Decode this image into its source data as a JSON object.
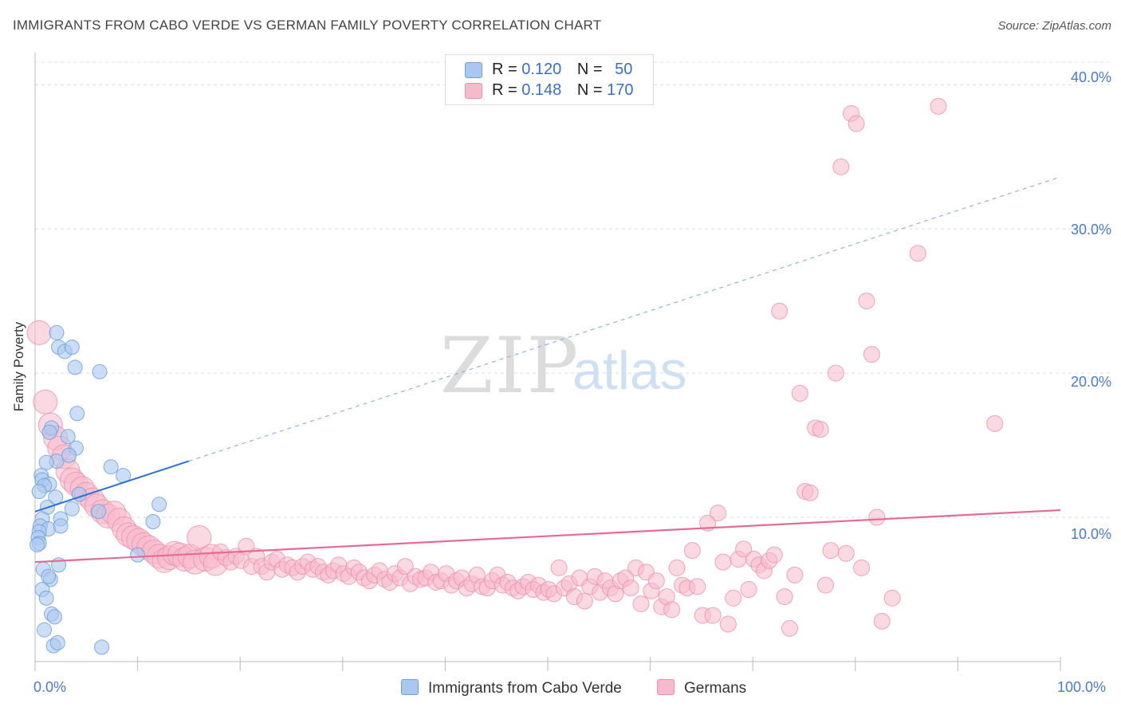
{
  "title": "IMMIGRANTS FROM CABO VERDE VS GERMAN FAMILY POVERTY CORRELATION CHART",
  "source": "Source: ZipAtlas.com",
  "watermark": {
    "zip": "ZIP",
    "atlas": "atlas"
  },
  "colors": {
    "blue_fill": "#aac8ef",
    "blue_stroke": "#6f9fdc",
    "blue_line": "#2f6fd0",
    "pink_fill": "#f7b9cc",
    "pink_stroke": "#eb8fab",
    "pink_line": "#e56b94",
    "axis_text": "#4a7bc8"
  },
  "legend": {
    "rows": [
      {
        "r_label": "R =",
        "r_value": "0.120",
        "n_label": "N =",
        "n_value": "50"
      },
      {
        "r_label": "R =",
        "r_value": "0.148",
        "n_label": "N =",
        "n_value": "170"
      }
    ]
  },
  "bottom_legend": {
    "series1": "Immigrants from Cabo Verde",
    "series2": "Germans"
  },
  "chart_data": {
    "type": "scatter",
    "title": "IMMIGRANTS FROM CABO VERDE VS GERMAN FAMILY POVERTY CORRELATION CHART",
    "xlabel": "",
    "ylabel": "Family Poverty",
    "xlim": [
      0,
      100
    ],
    "ylim": [
      0,
      42
    ],
    "x_ticks": [
      "0.0%",
      "100.0%"
    ],
    "y_ticks": [
      {
        "value": 10,
        "label": "10.0%"
      },
      {
        "value": 20,
        "label": "20.0%"
      },
      {
        "value": 30,
        "label": "30.0%"
      },
      {
        "value": 40,
        "label": "40.0%"
      }
    ],
    "grid": "horizontal dashed",
    "legend_position": "top-center",
    "series": [
      {
        "name": "Immigrants from Cabo Verde",
        "color": "#aac8ef",
        "r": 0.12,
        "n": 50,
        "trend": {
          "x": [
            0,
            15
          ],
          "y": [
            10.4,
            13.9
          ],
          "dashed_to": [
            100,
            33.6
          ]
        },
        "points": [
          [
            2.1,
            22.8
          ],
          [
            2.3,
            21.8
          ],
          [
            2.9,
            21.5
          ],
          [
            3.6,
            21.8
          ],
          [
            3.9,
            20.4
          ],
          [
            6.3,
            20.1
          ],
          [
            4.1,
            17.2
          ],
          [
            1.6,
            16.2
          ],
          [
            3.2,
            15.6
          ],
          [
            1.4,
            15.9
          ],
          [
            4.0,
            14.8
          ],
          [
            2.1,
            13.9
          ],
          [
            3.3,
            14.3
          ],
          [
            1.1,
            13.8
          ],
          [
            7.4,
            13.5
          ],
          [
            8.6,
            12.9
          ],
          [
            0.6,
            12.9
          ],
          [
            0.7,
            12.6
          ],
          [
            1.4,
            12.3
          ],
          [
            0.9,
            12.2
          ],
          [
            0.4,
            11.8
          ],
          [
            2.0,
            11.4
          ],
          [
            4.3,
            11.6
          ],
          [
            1.2,
            10.7
          ],
          [
            3.6,
            10.6
          ],
          [
            6.2,
            10.4
          ],
          [
            12.1,
            10.9
          ],
          [
            0.7,
            9.9
          ],
          [
            2.5,
            9.9
          ],
          [
            11.5,
            9.7
          ],
          [
            0.5,
            9.4
          ],
          [
            1.3,
            9.2
          ],
          [
            2.5,
            9.4
          ],
          [
            0.4,
            9.0
          ],
          [
            0.3,
            8.6
          ],
          [
            0.4,
            8.2
          ],
          [
            0.2,
            8.1
          ],
          [
            10.0,
            7.4
          ],
          [
            2.3,
            6.7
          ],
          [
            0.8,
            6.4
          ],
          [
            1.5,
            5.7
          ],
          [
            1.3,
            5.9
          ],
          [
            0.7,
            5.0
          ],
          [
            1.1,
            4.4
          ],
          [
            1.6,
            3.3
          ],
          [
            1.9,
            3.1
          ],
          [
            0.9,
            2.2
          ],
          [
            1.8,
            1.1
          ],
          [
            2.2,
            1.3
          ],
          [
            6.5,
            1.0
          ]
        ]
      },
      {
        "name": "Germans",
        "color": "#f7b9cc",
        "r": 0.148,
        "n": 170,
        "trend": {
          "x": [
            0,
            100
          ],
          "y": [
            6.9,
            10.5
          ]
        },
        "points": [
          [
            0.4,
            22.8
          ],
          [
            1.0,
            18.0
          ],
          [
            1.5,
            16.4
          ],
          [
            2.0,
            15.5
          ],
          [
            2.4,
            14.8
          ],
          [
            2.8,
            14.2
          ],
          [
            3.2,
            13.2
          ],
          [
            3.6,
            12.6
          ],
          [
            4.0,
            12.3
          ],
          [
            4.6,
            12.0
          ],
          [
            5.0,
            11.6
          ],
          [
            5.6,
            11.2
          ],
          [
            6.0,
            10.8
          ],
          [
            6.6,
            10.4
          ],
          [
            7.1,
            10.1
          ],
          [
            7.7,
            10.3
          ],
          [
            8.2,
            9.8
          ],
          [
            8.7,
            9.2
          ],
          [
            9.1,
            8.8
          ],
          [
            9.6,
            8.6
          ],
          [
            10.1,
            8.4
          ],
          [
            10.6,
            8.1
          ],
          [
            11.1,
            7.9
          ],
          [
            11.6,
            7.6
          ],
          [
            12.1,
            7.3
          ],
          [
            12.6,
            7.0
          ],
          [
            13.1,
            7.2
          ],
          [
            13.6,
            7.5
          ],
          [
            14.1,
            7.4
          ],
          [
            14.6,
            7.1
          ],
          [
            15.1,
            7.3
          ],
          [
            15.6,
            6.9
          ],
          [
            16.0,
            8.6
          ],
          [
            16.6,
            7.1
          ],
          [
            17.2,
            7.3
          ],
          [
            17.6,
            6.8
          ],
          [
            18.1,
            7.6
          ],
          [
            18.6,
            7.2
          ],
          [
            19.1,
            6.9
          ],
          [
            19.6,
            7.3
          ],
          [
            20.1,
            7.0
          ],
          [
            20.6,
            8.0
          ],
          [
            21.1,
            6.6
          ],
          [
            21.6,
            7.3
          ],
          [
            22.1,
            6.6
          ],
          [
            22.6,
            6.2
          ],
          [
            23.1,
            6.9
          ],
          [
            23.6,
            7.1
          ],
          [
            24.1,
            6.4
          ],
          [
            24.6,
            6.7
          ],
          [
            25.1,
            6.5
          ],
          [
            25.6,
            6.2
          ],
          [
            26.1,
            6.6
          ],
          [
            26.6,
            6.9
          ],
          [
            27.1,
            6.4
          ],
          [
            27.6,
            6.6
          ],
          [
            28.1,
            6.2
          ],
          [
            28.6,
            6.0
          ],
          [
            29.1,
            6.3
          ],
          [
            29.6,
            6.7
          ],
          [
            30.1,
            6.1
          ],
          [
            30.6,
            5.9
          ],
          [
            31.1,
            6.5
          ],
          [
            31.6,
            6.2
          ],
          [
            32.1,
            5.8
          ],
          [
            32.6,
            5.6
          ],
          [
            33.1,
            6.0
          ],
          [
            33.6,
            6.3
          ],
          [
            34.1,
            5.7
          ],
          [
            34.6,
            5.5
          ],
          [
            35.1,
            6.1
          ],
          [
            35.6,
            5.8
          ],
          [
            36.1,
            6.6
          ],
          [
            36.6,
            5.4
          ],
          [
            37.1,
            5.9
          ],
          [
            37.6,
            5.7
          ],
          [
            38.1,
            5.8
          ],
          [
            38.6,
            6.2
          ],
          [
            39.1,
            5.5
          ],
          [
            39.6,
            5.6
          ],
          [
            40.1,
            6.1
          ],
          [
            40.6,
            5.3
          ],
          [
            41.1,
            5.6
          ],
          [
            41.6,
            5.8
          ],
          [
            42.1,
            5.1
          ],
          [
            42.6,
            5.4
          ],
          [
            43.1,
            6.0
          ],
          [
            43.6,
            5.2
          ],
          [
            44.1,
            5.1
          ],
          [
            44.6,
            5.6
          ],
          [
            45.1,
            6.0
          ],
          [
            45.6,
            5.3
          ],
          [
            46.1,
            5.5
          ],
          [
            46.6,
            5.1
          ],
          [
            47.1,
            4.9
          ],
          [
            47.6,
            5.2
          ],
          [
            48.1,
            5.5
          ],
          [
            48.6,
            5.0
          ],
          [
            49.1,
            5.3
          ],
          [
            49.6,
            4.8
          ],
          [
            50.1,
            5.0
          ],
          [
            50.6,
            4.7
          ],
          [
            51.1,
            6.5
          ],
          [
            51.6,
            5.1
          ],
          [
            52.1,
            5.4
          ],
          [
            52.6,
            4.5
          ],
          [
            53.1,
            5.8
          ],
          [
            53.6,
            4.2
          ],
          [
            54.1,
            5.2
          ],
          [
            54.6,
            5.9
          ],
          [
            55.1,
            4.8
          ],
          [
            55.6,
            5.6
          ],
          [
            56.1,
            5.1
          ],
          [
            56.6,
            4.7
          ],
          [
            57.1,
            5.6
          ],
          [
            57.6,
            5.8
          ],
          [
            58.1,
            5.1
          ],
          [
            58.6,
            6.5
          ],
          [
            59.1,
            4.0
          ],
          [
            59.6,
            6.2
          ],
          [
            60.1,
            4.9
          ],
          [
            60.6,
            5.6
          ],
          [
            61.1,
            3.8
          ],
          [
            61.6,
            4.5
          ],
          [
            62.1,
            3.6
          ],
          [
            62.6,
            6.5
          ],
          [
            63.1,
            5.3
          ],
          [
            63.6,
            5.1
          ],
          [
            64.1,
            7.7
          ],
          [
            64.6,
            5.2
          ],
          [
            65.1,
            3.2
          ],
          [
            65.6,
            9.6
          ],
          [
            66.1,
            3.2
          ],
          [
            66.6,
            10.3
          ],
          [
            67.1,
            6.9
          ],
          [
            67.6,
            2.6
          ],
          [
            68.1,
            4.4
          ],
          [
            68.6,
            7.1
          ],
          [
            69.1,
            7.8
          ],
          [
            69.6,
            5.0
          ],
          [
            70.1,
            7.1
          ],
          [
            70.6,
            6.7
          ],
          [
            71.1,
            6.3
          ],
          [
            71.6,
            7.0
          ],
          [
            72.1,
            7.4
          ],
          [
            72.6,
            24.3
          ],
          [
            73.1,
            4.5
          ],
          [
            73.6,
            2.3
          ],
          [
            74.1,
            6.0
          ],
          [
            74.6,
            18.6
          ],
          [
            75.1,
            11.8
          ],
          [
            75.6,
            11.7
          ],
          [
            76.1,
            16.2
          ],
          [
            76.6,
            16.1
          ],
          [
            77.1,
            5.3
          ],
          [
            77.6,
            7.7
          ],
          [
            78.1,
            20.0
          ],
          [
            78.6,
            34.3
          ],
          [
            79.1,
            7.5
          ],
          [
            79.6,
            38.0
          ],
          [
            80.1,
            37.3
          ],
          [
            80.6,
            6.5
          ],
          [
            81.1,
            25.0
          ],
          [
            81.6,
            21.3
          ],
          [
            82.1,
            10.0
          ],
          [
            82.6,
            2.8
          ],
          [
            83.6,
            4.4
          ],
          [
            86.1,
            28.3
          ],
          [
            88.1,
            38.5
          ],
          [
            93.6,
            16.5
          ]
        ]
      }
    ]
  }
}
